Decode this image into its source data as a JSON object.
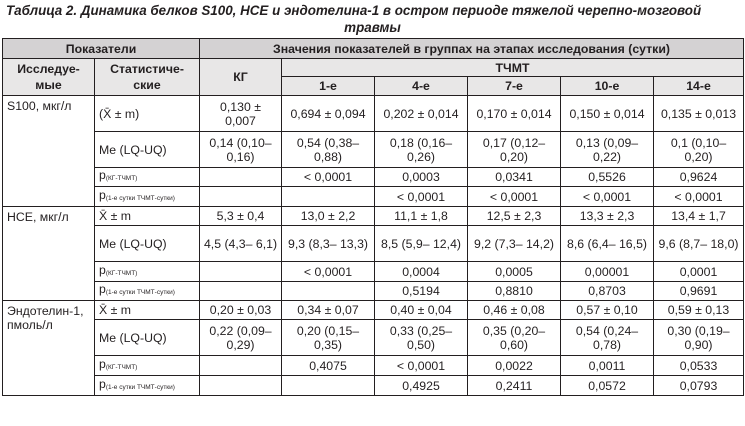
{
  "caption": {
    "line1": "Таблица 2. Динамика белков S100, НСЕ и эндотелина-1 в остром периоде тяжелой черепно-мозговой",
    "line2": "травмы"
  },
  "header": {
    "indicators": "Показатели",
    "values_title": "Значения показателей в группах на этапах исследования (сутки)",
    "studied": "Исследуе-мые",
    "statistical": "Статистиче-ские",
    "kg": "КГ",
    "tchmt": "ТЧМТ",
    "days": [
      "1-е",
      "4-е",
      "7-е",
      "10-е",
      "14-е"
    ]
  },
  "stat_labels": {
    "mean": "(X̄ ± m)",
    "mean2": "X̄ ± m",
    "median": "Me (LQ-UQ)",
    "p": "p",
    "p_kg_sub": "(КГ-ТЧМТ)",
    "p_days_sub": "(1-е сутки ТЧМТ-сутки)"
  },
  "groups": [
    {
      "name": "S100, мкг/л",
      "mean_label": "(X̄ ± m)",
      "mean": [
        "0,130 ± 0,007",
        "0,694 ± 0,094",
        "0,202 ± 0,014",
        "0,170 ± 0,014",
        "0,150 ± 0,014",
        "0,135 ± 0,013"
      ],
      "median": [
        "0,14 (0,10– 0,16)",
        "0,54 (0,38– 0,88)",
        "0,18 (0,16– 0,26)",
        "0,17 (0,12– 0,20)",
        "0,13 (0,09– 0,22)",
        "0,1 (0,10– 0,20)"
      ],
      "p_kg": [
        "",
        "< 0,0001",
        "0,0003",
        "0,0341",
        "0,5526",
        "0,9624"
      ],
      "p_days": [
        "",
        "",
        "< 0,0001",
        "< 0,0001",
        "< 0,0001",
        "< 0,0001"
      ]
    },
    {
      "name": "НСЕ, мкг/л",
      "mean_label": "X̄ ± m",
      "mean": [
        "5,3 ± 0,4",
        "13,0 ± 2,2",
        "11,1 ± 1,8",
        "12,5 ± 2,3",
        "13,3 ± 2,3",
        "13,4 ± 1,7"
      ],
      "median": [
        "4,5 (4,3– 6,1)",
        "9,3 (8,3– 13,3)",
        "8,5 (5,9– 12,4)",
        "9,2 (7,3– 14,2)",
        "8,6 (6,4– 16,5)",
        "9,6 (8,7– 18,0)"
      ],
      "p_kg": [
        "",
        "< 0,0001",
        "0,0004",
        "0,0005",
        "0,00001",
        "0,0001"
      ],
      "p_days": [
        "",
        "",
        "0,5194",
        "0,8810",
        "0,8703",
        "0,9691"
      ]
    },
    {
      "name": "Эндотелин-1, пмоль/л",
      "mean_label": "X̄ ± m",
      "mean": [
        "0,20 ± 0,03",
        "0,34 ± 0,07",
        "0,40 ± 0,04",
        "0,46 ± 0,08",
        "0,57 ± 0,10",
        "0,59 ± 0,13"
      ],
      "median": [
        "0,22 (0,09– 0,29)",
        "0,20 (0,15– 0,35)",
        "0,33 (0,25– 0,50)",
        "0,35 (0,20– 0,60)",
        "0,54 (0,24– 0,78)",
        "0,30 (0,19– 0,90)"
      ],
      "p_kg": [
        "",
        "0,4075",
        "< 0,0001",
        "0,0022",
        "0,0011",
        "0,0533"
      ],
      "p_days": [
        "",
        "",
        "0,4925",
        "0,2411",
        "0,0572",
        "0,0793"
      ]
    }
  ]
}
